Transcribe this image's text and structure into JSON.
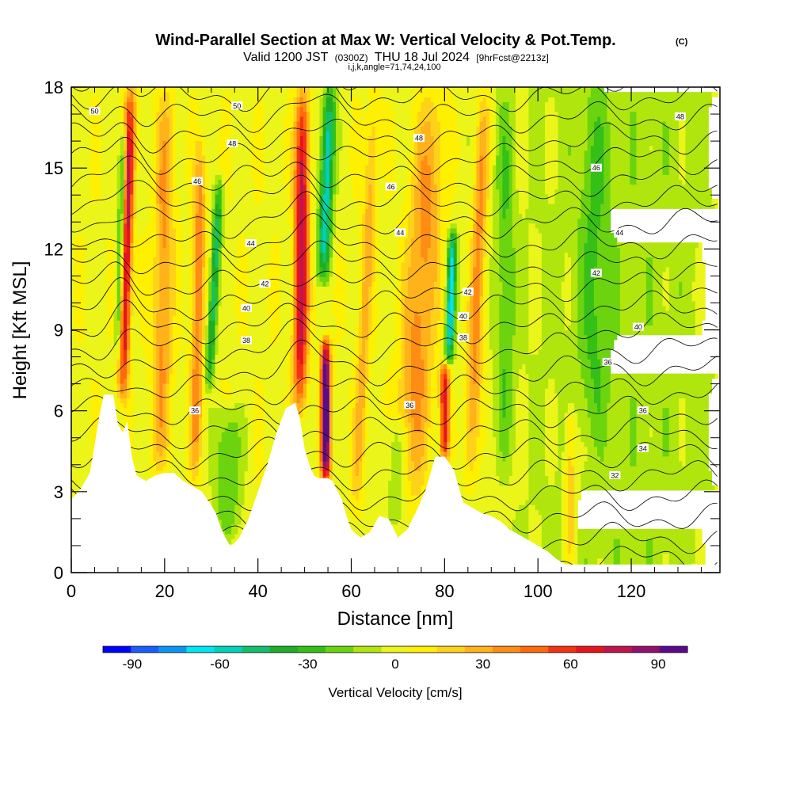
{
  "header": {
    "title": "Wind-Parallel Section at Max W: Vertical Velocity & Pot.Temp.",
    "copyright": "(C)",
    "valid_prefix": "Valid 1200 JST",
    "valid_utc": "(0300Z)",
    "valid_date": "THU 18 Jul 2024",
    "forecast": "[9hrFcst@2213z]",
    "params": "i,j,k,angle=71,74,24,100"
  },
  "colorbar": {
    "label": "Vertical Velocity [cm/s]",
    "tick_labels": [
      "-90",
      "-60",
      "-30",
      "0",
      "30",
      "60",
      "90"
    ],
    "tick_values": [
      -90,
      -60,
      -30,
      0,
      30,
      60,
      90
    ],
    "min": -100,
    "max": 100,
    "step": 10,
    "colors": [
      "#0000ff",
      "#1a5cff",
      "#0a96f5",
      "#00e6f5",
      "#00d2b9",
      "#14bf69",
      "#1fad28",
      "#35c018",
      "#6cd40f",
      "#b0e60d",
      "#ebf51a",
      "#fff000",
      "#ffd21a",
      "#ffb21a",
      "#ff8c14",
      "#ff6a0a",
      "#f53214",
      "#e6141e",
      "#be1450",
      "#91106e",
      "#5a0a8c"
    ]
  },
  "chart_data": {
    "type": "heatmap",
    "title": "Wind-Parallel Section at Max W: Vertical Velocity & Pot.Temp.",
    "xlabel": "Distance [nm]",
    "ylabel": "Height [Kft MSL]",
    "xlim": [
      0,
      139
    ],
    "ylim": [
      0,
      18
    ],
    "x_ticks": [
      0,
      20,
      40,
      60,
      80,
      100,
      120
    ],
    "y_ticks": [
      0,
      3,
      6,
      9,
      12,
      15,
      18
    ],
    "x_tick_labels": [
      "0",
      "20",
      "40",
      "60",
      "80",
      "100",
      "120"
    ],
    "y_tick_labels": [
      "0",
      "3",
      "6",
      "9",
      "12",
      "15",
      "18"
    ],
    "fill_variable": "Vertical Velocity [cm/s]",
    "contour_variable": "Pot.Temp.",
    "terrain_profile": [
      [
        0,
        2.7
      ],
      [
        2,
        3.1
      ],
      [
        4,
        3.7
      ],
      [
        6,
        5.8
      ],
      [
        7,
        6.6
      ],
      [
        9,
        6.6
      ],
      [
        10,
        5.5
      ],
      [
        11,
        5.2
      ],
      [
        12,
        5.6
      ],
      [
        13,
        4.3
      ],
      [
        14,
        3.6
      ],
      [
        16,
        3.4
      ],
      [
        18,
        3.6
      ],
      [
        20,
        3.7
      ],
      [
        22,
        3.7
      ],
      [
        24,
        3.4
      ],
      [
        26,
        3.2
      ],
      [
        28,
        3.0
      ],
      [
        30,
        2.5
      ],
      [
        31,
        2.2
      ],
      [
        32,
        1.7
      ],
      [
        33,
        1.3
      ],
      [
        34,
        1.0
      ],
      [
        35,
        1.1
      ],
      [
        36,
        1.3
      ],
      [
        38,
        2.0
      ],
      [
        40,
        3.0
      ],
      [
        42,
        4.0
      ],
      [
        44,
        5.2
      ],
      [
        46,
        6.1
      ],
      [
        48,
        6.3
      ],
      [
        49,
        5.7
      ],
      [
        50,
        4.6
      ],
      [
        51,
        4.0
      ],
      [
        52,
        3.6
      ],
      [
        53,
        3.5
      ],
      [
        55,
        3.5
      ],
      [
        56,
        3.4
      ],
      [
        58,
        2.7
      ],
      [
        59,
        2.1
      ],
      [
        60,
        1.6
      ],
      [
        62,
        1.3
      ],
      [
        64,
        1.5
      ],
      [
        66,
        2.1
      ],
      [
        68,
        2.0
      ],
      [
        70,
        1.3
      ],
      [
        72,
        1.6
      ],
      [
        74,
        2.3
      ],
      [
        76,
        3.1
      ],
      [
        78,
        4.3
      ],
      [
        80,
        4.3
      ],
      [
        82,
        3.8
      ],
      [
        83,
        3.2
      ],
      [
        84,
        2.6
      ],
      [
        86,
        2.4
      ],
      [
        88,
        2.2
      ],
      [
        90,
        2.1
      ],
      [
        92,
        1.9
      ],
      [
        94,
        1.6
      ],
      [
        96,
        1.4
      ],
      [
        98,
        1.2
      ],
      [
        100,
        1.0
      ],
      [
        102,
        0.8
      ],
      [
        104,
        0.5
      ],
      [
        106,
        0.3
      ],
      [
        110,
        0.3
      ],
      [
        120,
        0.3
      ],
      [
        139,
        0.3
      ]
    ],
    "updraft_columns": [
      {
        "x": 11,
        "y_base": 6.5,
        "y_top": 18,
        "peak": 80,
        "half_width": 1.2,
        "tilt": 0.15
      },
      {
        "x": 19,
        "y_base": 3.7,
        "y_top": 18,
        "peak": 35,
        "half_width": 2.0,
        "tilt": 0.1
      },
      {
        "x": 26.5,
        "y_base": 3.5,
        "y_top": 16,
        "peak": 40,
        "half_width": 1.3,
        "tilt": 0.1
      },
      {
        "x": 49,
        "y_base": 6.0,
        "y_top": 18,
        "peak": 80,
        "half_width": 1.5,
        "tilt": 0.05
      },
      {
        "x": 54.5,
        "y_base": 3.5,
        "y_top": 8.5,
        "peak": 110,
        "half_width": 1.0,
        "tilt": 0.0
      },
      {
        "x": 61,
        "y_base": 2.0,
        "y_top": 18,
        "peak": 28,
        "half_width": 1.3,
        "tilt": 0.25
      },
      {
        "x": 72,
        "y_base": 2.0,
        "y_top": 18,
        "peak": 38,
        "half_width": 3.5,
        "tilt": 0.35
      },
      {
        "x": 80,
        "y_base": 4.5,
        "y_top": 7.5,
        "peak": 75,
        "half_width": 1.0,
        "tilt": 0.0
      },
      {
        "x": 85.5,
        "y_base": 3.0,
        "y_top": 18,
        "peak": 40,
        "half_width": 1.6,
        "tilt": 0.2
      },
      {
        "x": 107,
        "y_base": 0.5,
        "y_top": 6.0,
        "peak": 30,
        "half_width": 1.3,
        "tilt": 0.0
      }
    ],
    "downdraft_columns": [
      {
        "x": 10,
        "y_base": 8.0,
        "y_top": 16.5,
        "peak": -50,
        "half_width": 0.8,
        "tilt": 0.15
      },
      {
        "x": 29.5,
        "y_base": 7.0,
        "y_top": 14.5,
        "peak": -55,
        "half_width": 1.0,
        "tilt": 0.3
      },
      {
        "x": 33.5,
        "y_base": 1.5,
        "y_top": 6.0,
        "peak": -28,
        "half_width": 3.0,
        "tilt": 0.0
      },
      {
        "x": 54,
        "y_base": 11.0,
        "y_top": 18,
        "peak": -65,
        "half_width": 1.5,
        "tilt": 0.2
      },
      {
        "x": 70,
        "y_base": 2.0,
        "y_top": 5.5,
        "peak": -25,
        "half_width": 2.5,
        "tilt": 0.0
      },
      {
        "x": 81,
        "y_base": 8.0,
        "y_top": 12.5,
        "peak": -70,
        "half_width": 0.9,
        "tilt": 0.15
      },
      {
        "x": 93,
        "y_base": 4.0,
        "y_top": 18,
        "peak": -22,
        "half_width": 2.0,
        "tilt": 0.0
      },
      {
        "x": 112,
        "y_base": 5.0,
        "y_top": 18,
        "peak": -18,
        "half_width": 3.0,
        "tilt": 0.0
      }
    ],
    "contour_labels": [
      {
        "text": "50",
        "x": 5,
        "y": 17.1
      },
      {
        "text": "50",
        "x": 35.5,
        "y": 17.3
      },
      {
        "text": "48",
        "x": 34.5,
        "y": 15.9
      },
      {
        "text": "48",
        "x": 74.5,
        "y": 16.1
      },
      {
        "text": "48",
        "x": 130.5,
        "y": 16.9
      },
      {
        "text": "46",
        "x": 27,
        "y": 14.5
      },
      {
        "text": "46",
        "x": 68.5,
        "y": 14.3
      },
      {
        "text": "46",
        "x": 112.5,
        "y": 15.0
      },
      {
        "text": "44",
        "x": 38.5,
        "y": 12.2
      },
      {
        "text": "44",
        "x": 70.5,
        "y": 12.6
      },
      {
        "text": "44",
        "x": 117.5,
        "y": 12.6
      },
      {
        "text": "42",
        "x": 41.5,
        "y": 10.7
      },
      {
        "text": "42",
        "x": 85,
        "y": 10.4
      },
      {
        "text": "42",
        "x": 112.5,
        "y": 11.1
      },
      {
        "text": "40",
        "x": 37.5,
        "y": 9.8
      },
      {
        "text": "40",
        "x": 84,
        "y": 9.5
      },
      {
        "text": "40",
        "x": 121.5,
        "y": 9.1
      },
      {
        "text": "38",
        "x": 37.5,
        "y": 8.6
      },
      {
        "text": "38",
        "x": 84,
        "y": 8.7
      },
      {
        "text": "36",
        "x": 26.5,
        "y": 6.0
      },
      {
        "text": "36",
        "x": 72.5,
        "y": 6.2
      },
      {
        "text": "36",
        "x": 115,
        "y": 7.8
      },
      {
        "text": "36",
        "x": 122.5,
        "y": 6.0
      },
      {
        "text": "34",
        "x": 122.5,
        "y": 4.6
      },
      {
        "text": "32",
        "x": 116.5,
        "y": 3.6
      }
    ]
  }
}
